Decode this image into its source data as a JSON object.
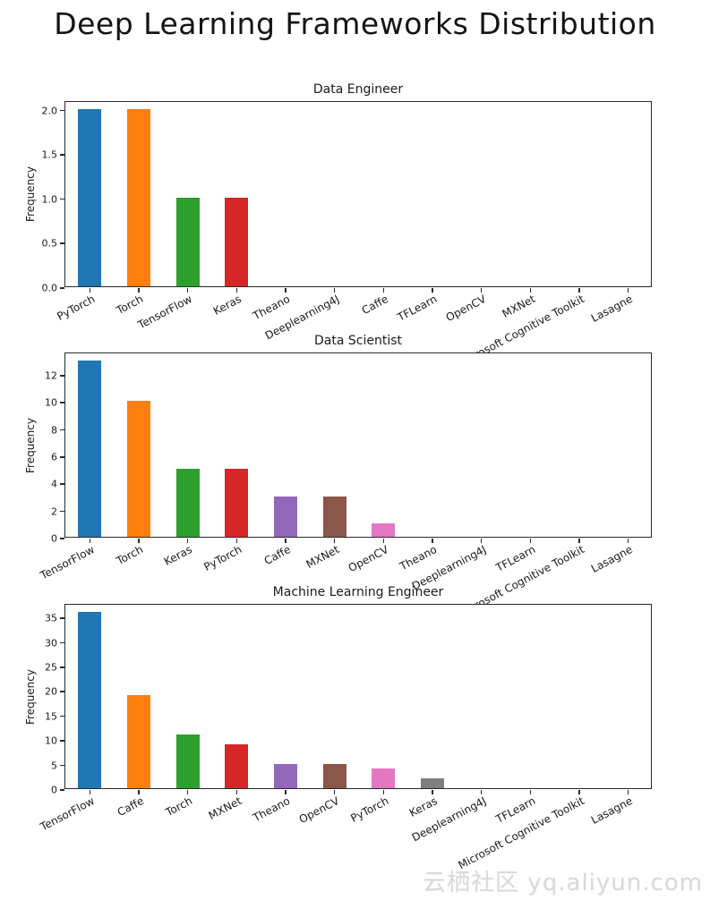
{
  "title": "Deep Learning Frameworks Distribution",
  "watermark": "云栖社区 yq.aliyun.com",
  "chart_data": [
    {
      "type": "bar",
      "title": "Data Engineer",
      "xlabel": "",
      "ylabel": "Frequency",
      "categories": [
        "PyTorch",
        "Torch",
        "TensorFlow",
        "Keras",
        "Theano",
        "Deeplearning4J",
        "Caffe",
        "TFLearn",
        "OpenCV",
        "MXNet",
        "Microsoft Cognitive Toolkit",
        "Lasagne"
      ],
      "values": [
        2,
        2,
        1,
        1,
        0,
        0,
        0,
        0,
        0,
        0,
        0,
        0
      ],
      "colors": [
        "#1f77b4",
        "#ff7f0e",
        "#2ca02c",
        "#d62728",
        "#9467bd",
        "#8c564b",
        "#e377c2",
        "#7f7f7f",
        "#bcbd22",
        "#17becf",
        "#1f77b4",
        "#ff7f0e"
      ],
      "yticks": [
        0.0,
        0.5,
        1.0,
        1.5,
        2.0
      ],
      "ytick_labels": [
        "0.0",
        "0.5",
        "1.0",
        "1.5",
        "2.0"
      ],
      "ylim": [
        0,
        2.1
      ],
      "grid": false,
      "legend": "none"
    },
    {
      "type": "bar",
      "title": "Data Scientist",
      "xlabel": "",
      "ylabel": "Frequency",
      "categories": [
        "TensorFlow",
        "Torch",
        "Keras",
        "PyTorch",
        "Caffe",
        "MXNet",
        "OpenCV",
        "Theano",
        "Deeplearning4J",
        "TFLearn",
        "Microsoft Cognitive Toolkit",
        "Lasagne"
      ],
      "values": [
        13,
        10,
        5,
        5,
        3,
        3,
        1,
        0,
        0,
        0,
        0,
        0
      ],
      "colors": [
        "#1f77b4",
        "#ff7f0e",
        "#2ca02c",
        "#d62728",
        "#9467bd",
        "#8c564b",
        "#e377c2",
        "#7f7f7f",
        "#bcbd22",
        "#17becf",
        "#1f77b4",
        "#ff7f0e"
      ],
      "yticks": [
        0,
        2,
        4,
        6,
        8,
        10,
        12
      ],
      "ytick_labels": [
        "0",
        "2",
        "4",
        "6",
        "8",
        "10",
        "12"
      ],
      "ylim": [
        0,
        13.65
      ],
      "grid": false,
      "legend": "none"
    },
    {
      "type": "bar",
      "title": "Machine Learning Engineer",
      "xlabel": "",
      "ylabel": "Frequency",
      "categories": [
        "TensorFlow",
        "Caffe",
        "Torch",
        "MXNet",
        "Theano",
        "OpenCV",
        "PyTorch",
        "Keras",
        "Deeplearning4J",
        "TFLearn",
        "Microsoft Cognitive Toolkit",
        "Lasagne"
      ],
      "values": [
        36,
        19,
        11,
        9,
        5,
        5,
        4,
        2,
        0,
        0,
        0,
        0
      ],
      "colors": [
        "#1f77b4",
        "#ff7f0e",
        "#2ca02c",
        "#d62728",
        "#9467bd",
        "#8c564b",
        "#e377c2",
        "#7f7f7f",
        "#bcbd22",
        "#17becf",
        "#1f77b4",
        "#ff7f0e"
      ],
      "yticks": [
        0,
        5,
        10,
        15,
        20,
        25,
        30,
        35
      ],
      "ytick_labels": [
        "0",
        "5",
        "10",
        "15",
        "20",
        "25",
        "30",
        "35"
      ],
      "ylim": [
        0,
        37.8
      ],
      "grid": false,
      "legend": "none"
    }
  ]
}
